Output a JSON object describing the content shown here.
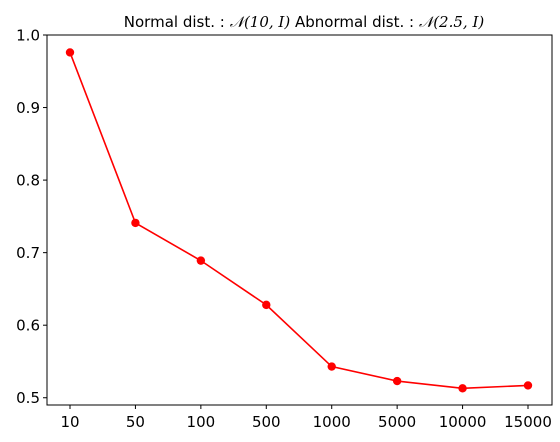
{
  "chart_data": {
    "type": "line",
    "title": {
      "part1": "Normal dist. : ",
      "math1": "𝒩(10, I)",
      "part2": " Abnormal dist. : ",
      "math2": "𝒩(2.5, I)"
    },
    "xlabel": "",
    "ylabel": "",
    "categories": [
      "10",
      "50",
      "100",
      "500",
      "1000",
      "5000",
      "10000",
      "15000"
    ],
    "series": [
      {
        "values": [
          0.976,
          0.741,
          0.689,
          0.628,
          0.543,
          0.523,
          0.513,
          0.517
        ],
        "color": "#ff0000",
        "marker": "circle"
      }
    ],
    "ylim": [
      0.49,
      1.0
    ],
    "yticks": [
      0.5,
      0.6,
      0.7,
      0.8,
      0.9,
      1.0
    ],
    "ytick_labels": [
      "0.5",
      "0.6",
      "0.7",
      "0.8",
      "0.9",
      "1.0"
    ],
    "grid": false,
    "legend": "none"
  }
}
